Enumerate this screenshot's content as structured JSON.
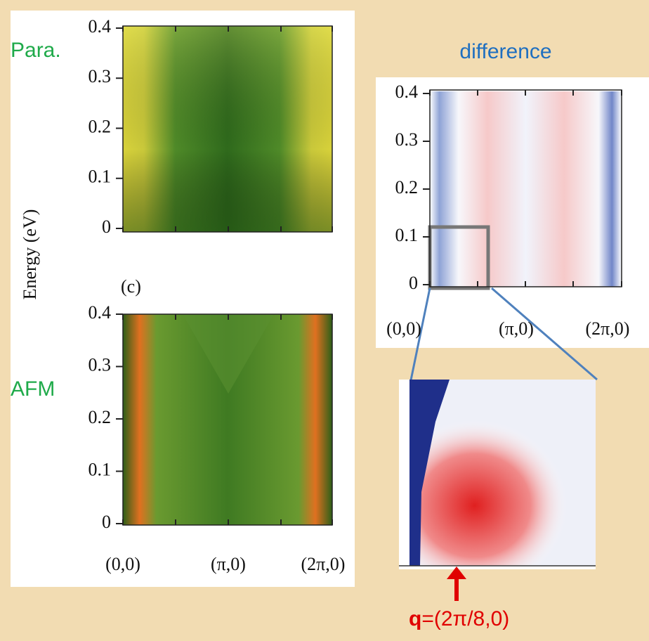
{
  "y_axis_label": "Energy (eV)",
  "panel_label": "(c)",
  "para_label": "Para.",
  "afm_label": "AFM",
  "difference_label": "difference",
  "para_yticks": [
    "0",
    "0.1",
    "0.2",
    "0.3",
    "0.4"
  ],
  "afm_yticks": [
    "0",
    "0.1",
    "0.2",
    "0.3",
    "0.4"
  ],
  "left_xticks": [
    "(0,0)",
    "(π,0)",
    "(2π,0)"
  ],
  "diff_yticks": [
    "0",
    "0.1",
    "0.2",
    "0.3",
    "0.4"
  ],
  "diff_xticks": [
    "(0,0)",
    "(π,0)",
    "(2π,0)"
  ],
  "q_label": {
    "bold": "q",
    "rest": "=(2π/8,0)"
  }
}
